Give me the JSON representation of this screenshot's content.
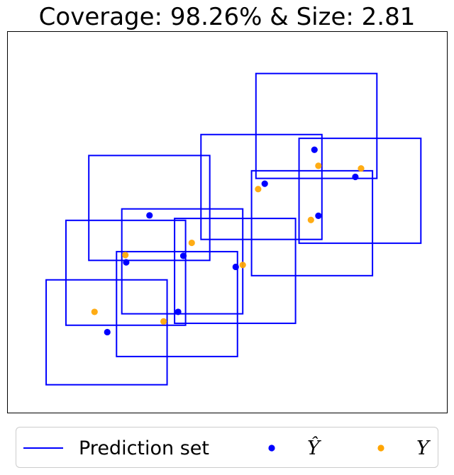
{
  "colors": {
    "prediction_set": "#0000ff",
    "y_hat": "#0000ff",
    "y": "#ffa500"
  },
  "chart_data": {
    "type": "scatter",
    "title": "Coverage: 98.26% & Size: 2.81",
    "xlabel": "",
    "ylabel": "",
    "grid": false,
    "ticks_visible": false,
    "legend": {
      "placement": "bottom",
      "entries": [
        "Prediction set",
        "Ŷ",
        "Y"
      ]
    },
    "series": [
      {
        "name": "Prediction set",
        "kind": "box",
        "boxes": [
          {
            "x0": 0.88,
            "x1": 3.63,
            "y0": 0.74,
            "y1": 3.49
          },
          {
            "x0": 1.33,
            "x1": 4.05,
            "y0": 2.3,
            "y1": 5.05
          },
          {
            "x0": 1.85,
            "x1": 4.6,
            "y0": 4.0,
            "y1": 6.75
          },
          {
            "x0": 2.48,
            "x1": 5.23,
            "y0": 1.48,
            "y1": 4.23
          },
          {
            "x0": 2.6,
            "x1": 5.35,
            "y0": 2.6,
            "y1": 5.35
          },
          {
            "x0": 3.8,
            "x1": 6.55,
            "y0": 2.35,
            "y1": 5.1
          },
          {
            "x0": 4.4,
            "x1": 7.15,
            "y0": 4.55,
            "y1": 7.3
          },
          {
            "x0": 5.55,
            "x1": 8.3,
            "y0": 3.6,
            "y1": 6.35
          },
          {
            "x0": 5.65,
            "x1": 8.4,
            "y0": 6.15,
            "y1": 8.9
          },
          {
            "x0": 6.63,
            "x1": 9.4,
            "y0": 4.45,
            "y1": 7.2
          }
        ]
      },
      {
        "name": "Ŷ",
        "kind": "point",
        "points": [
          {
            "x": 2.27,
            "y": 2.12
          },
          {
            "x": 2.7,
            "y": 3.95
          },
          {
            "x": 3.23,
            "y": 5.18
          },
          {
            "x": 3.88,
            "y": 2.65
          },
          {
            "x": 4.0,
            "y": 4.12
          },
          {
            "x": 5.19,
            "y": 3.83
          },
          {
            "x": 5.85,
            "y": 6.01
          },
          {
            "x": 6.98,
            "y": 6.9
          },
          {
            "x": 7.07,
            "y": 5.17
          },
          {
            "x": 7.91,
            "y": 6.19
          }
        ]
      },
      {
        "name": "Y",
        "kind": "point",
        "points": [
          {
            "x": 1.98,
            "y": 2.65
          },
          {
            "x": 2.68,
            "y": 4.14
          },
          {
            "x": 3.55,
            "y": 2.4
          },
          {
            "x": 4.19,
            "y": 4.46
          },
          {
            "x": 5.35,
            "y": 3.88
          },
          {
            "x": 5.7,
            "y": 5.87
          },
          {
            "x": 6.9,
            "y": 5.06
          },
          {
            "x": 7.07,
            "y": 6.48
          },
          {
            "x": 8.04,
            "y": 6.41
          }
        ]
      }
    ],
    "xlim": [
      0,
      10
    ],
    "ylim": [
      0,
      10
    ]
  }
}
